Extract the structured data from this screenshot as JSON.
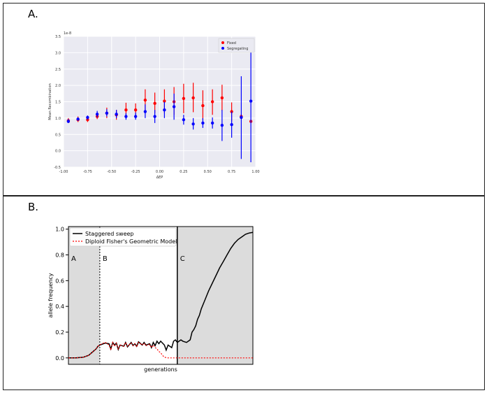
{
  "panels": [
    {
      "label": "A."
    },
    {
      "label": "B."
    }
  ],
  "chart_data": [
    {
      "type": "scatter",
      "ylabel": "Mean Recombination",
      "xlabel": "ΔEP",
      "y_scale_note": "1e-8",
      "xlim": [
        -1.0,
        1.0
      ],
      "ylim": [
        -0.5,
        3.5
      ],
      "xticks": [
        "-1.00",
        "-0.75",
        "-0.50",
        "-0.25",
        "0.00",
        "0.25",
        "0.50",
        "0.75",
        "1.00"
      ],
      "yticks": [
        "-0.5",
        "0.0",
        "0.5",
        "1.0",
        "1.5",
        "2.0",
        "2.5",
        "3.0",
        "3.5"
      ],
      "grid": true,
      "legend_position": "top-right",
      "colors": {
        "Fixed": "#ff0000",
        "Segregating": "#0000ff",
        "background": "#eaeaf2"
      },
      "series": [
        {
          "name": "Fixed",
          "points": [
            {
              "x": -0.95,
              "y": 0.92,
              "lo": 0.85,
              "hi": 1.0
            },
            {
              "x": -0.85,
              "y": 0.95,
              "lo": 0.88,
              "hi": 1.05
            },
            {
              "x": -0.75,
              "y": 0.95,
              "lo": 0.88,
              "hi": 1.02
            },
            {
              "x": -0.65,
              "y": 1.05,
              "lo": 0.97,
              "hi": 1.15
            },
            {
              "x": -0.55,
              "y": 1.15,
              "lo": 1.0,
              "hi": 1.32
            },
            {
              "x": -0.45,
              "y": 1.1,
              "lo": 0.95,
              "hi": 1.25
            },
            {
              "x": -0.35,
              "y": 1.25,
              "lo": 1.05,
              "hi": 1.47
            },
            {
              "x": -0.25,
              "y": 1.25,
              "lo": 1.05,
              "hi": 1.45
            },
            {
              "x": -0.15,
              "y": 1.55,
              "lo": 1.2,
              "hi": 1.88
            },
            {
              "x": -0.05,
              "y": 1.45,
              "lo": 1.15,
              "hi": 1.78
            },
            {
              "x": 0.05,
              "y": 1.52,
              "lo": 1.15,
              "hi": 1.88
            },
            {
              "x": 0.15,
              "y": 1.5,
              "lo": 1.1,
              "hi": 1.95
            },
            {
              "x": 0.25,
              "y": 1.6,
              "lo": 1.15,
              "hi": 2.05
            },
            {
              "x": 0.35,
              "y": 1.62,
              "lo": 1.18,
              "hi": 2.08
            },
            {
              "x": 0.45,
              "y": 1.38,
              "lo": 0.95,
              "hi": 1.85
            },
            {
              "x": 0.55,
              "y": 1.5,
              "lo": 1.1,
              "hi": 1.88
            },
            {
              "x": 0.65,
              "y": 1.62,
              "lo": 1.22,
              "hi": 2.02
            },
            {
              "x": 0.75,
              "y": 1.2,
              "lo": 0.9,
              "hi": 1.48
            },
            {
              "x": 0.85,
              "y": 1.05,
              "lo": 0.98,
              "hi": 1.12
            },
            {
              "x": 0.95,
              "y": 0.9,
              "lo": 0.85,
              "hi": 0.95
            }
          ]
        },
        {
          "name": "Segregating",
          "points": [
            {
              "x": -0.95,
              "y": 0.9,
              "lo": 0.85,
              "hi": 0.97
            },
            {
              "x": -0.85,
              "y": 0.97,
              "lo": 0.92,
              "hi": 1.02
            },
            {
              "x": -0.75,
              "y": 1.02,
              "lo": 0.95,
              "hi": 1.08
            },
            {
              "x": -0.65,
              "y": 1.12,
              "lo": 1.02,
              "hi": 1.22
            },
            {
              "x": -0.55,
              "y": 1.15,
              "lo": 1.05,
              "hi": 1.27
            },
            {
              "x": -0.45,
              "y": 1.12,
              "lo": 1.0,
              "hi": 1.25
            },
            {
              "x": -0.35,
              "y": 1.05,
              "lo": 0.95,
              "hi": 1.15
            },
            {
              "x": -0.25,
              "y": 1.05,
              "lo": 0.95,
              "hi": 1.17
            },
            {
              "x": -0.15,
              "y": 1.2,
              "lo": 1.0,
              "hi": 1.42
            },
            {
              "x": -0.05,
              "y": 1.05,
              "lo": 0.85,
              "hi": 1.25
            },
            {
              "x": 0.05,
              "y": 1.25,
              "lo": 1.0,
              "hi": 1.5
            },
            {
              "x": 0.15,
              "y": 1.35,
              "lo": 0.95,
              "hi": 1.75
            },
            {
              "x": 0.25,
              "y": 0.95,
              "lo": 0.8,
              "hi": 1.1
            },
            {
              "x": 0.35,
              "y": 0.82,
              "lo": 0.65,
              "hi": 1.0
            },
            {
              "x": 0.45,
              "y": 0.85,
              "lo": 0.7,
              "hi": 1.0
            },
            {
              "x": 0.55,
              "y": 0.85,
              "lo": 0.68,
              "hi": 1.02
            },
            {
              "x": 0.65,
              "y": 0.78,
              "lo": 0.3,
              "hi": 1.25
            },
            {
              "x": 0.75,
              "y": 0.8,
              "lo": 0.4,
              "hi": 1.2
            },
            {
              "x": 0.85,
              "y": 1.02,
              "lo": -0.25,
              "hi": 2.28
            },
            {
              "x": 0.95,
              "y": 1.52,
              "lo": -0.35,
              "hi": 3.18
            }
          ]
        }
      ]
    },
    {
      "type": "line",
      "ylabel": "allele frequency",
      "xlabel": "generations",
      "xlim": [
        0,
        100
      ],
      "ylim": [
        -0.05,
        1.02
      ],
      "yticks": [
        "0.0",
        "0.2",
        "0.4",
        "0.6",
        "0.8",
        "1.0"
      ],
      "legend_position": "top-left",
      "regions": [
        {
          "label": "A",
          "x0": 0,
          "x1": 17,
          "shaded": true
        },
        {
          "label": "B",
          "x0": 17,
          "x1": 59,
          "shaded": false
        },
        {
          "label": "C",
          "x0": 59,
          "x1": 100,
          "shaded": true
        }
      ],
      "vlines": [
        {
          "x": 17,
          "style": "dotted"
        },
        {
          "x": 59,
          "style": "solid"
        }
      ],
      "colors": {
        "Staggered sweep": "#000000",
        "Diploid Fisher's Geometric Model": "#ff0000",
        "shade": "#dcdcdc"
      },
      "series": [
        {
          "name": "Staggered sweep",
          "x": [
            0,
            4,
            8,
            11,
            13,
            15,
            16,
            17,
            18,
            20,
            22,
            23,
            24,
            25,
            26,
            27,
            28,
            30,
            31,
            32,
            34,
            35,
            36,
            37,
            38,
            40,
            41,
            42,
            44,
            45,
            46,
            47,
            48,
            49,
            50,
            52,
            53,
            54,
            56,
            57,
            58,
            59,
            61,
            62,
            64,
            66,
            67,
            68,
            69,
            70,
            71,
            72,
            74,
            76,
            78,
            80,
            82,
            84,
            86,
            88,
            90,
            92,
            94,
            96,
            98,
            100
          ],
          "y": [
            0.0,
            0.0,
            0.005,
            0.02,
            0.045,
            0.07,
            0.09,
            0.1,
            0.105,
            0.115,
            0.11,
            0.07,
            0.12,
            0.1,
            0.115,
            0.065,
            0.1,
            0.09,
            0.12,
            0.085,
            0.12,
            0.095,
            0.11,
            0.09,
            0.125,
            0.1,
            0.12,
            0.1,
            0.11,
            0.08,
            0.12,
            0.095,
            0.13,
            0.11,
            0.13,
            0.1,
            0.06,
            0.1,
            0.08,
            0.13,
            0.14,
            0.12,
            0.14,
            0.13,
            0.12,
            0.14,
            0.2,
            0.22,
            0.25,
            0.3,
            0.33,
            0.38,
            0.45,
            0.52,
            0.58,
            0.64,
            0.7,
            0.75,
            0.8,
            0.85,
            0.89,
            0.92,
            0.94,
            0.96,
            0.97,
            0.975
          ]
        },
        {
          "name": "Diploid Fisher's Geometric Model",
          "x": [
            0,
            4,
            8,
            11,
            13,
            15,
            16,
            17,
            18,
            20,
            22,
            23,
            24,
            25,
            26,
            27,
            28,
            30,
            31,
            32,
            34,
            35,
            36,
            37,
            38,
            40,
            41,
            42,
            44,
            45,
            46,
            47,
            48,
            49,
            50,
            51,
            52,
            54,
            56,
            58,
            60,
            65,
            70,
            80,
            90,
            100
          ],
          "y": [
            0.0,
            0.0,
            0.005,
            0.02,
            0.045,
            0.07,
            0.09,
            0.1,
            0.11,
            0.12,
            0.1,
            0.06,
            0.12,
            0.09,
            0.115,
            0.07,
            0.1,
            0.09,
            0.12,
            0.09,
            0.115,
            0.095,
            0.11,
            0.085,
            0.12,
            0.1,
            0.115,
            0.095,
            0.105,
            0.08,
            0.1,
            0.08,
            0.07,
            0.05,
            0.04,
            0.02,
            0.005,
            0.0,
            0.0,
            0.0,
            0.0,
            0.0,
            0.0,
            0.0,
            0.0,
            0.0
          ]
        }
      ]
    }
  ]
}
